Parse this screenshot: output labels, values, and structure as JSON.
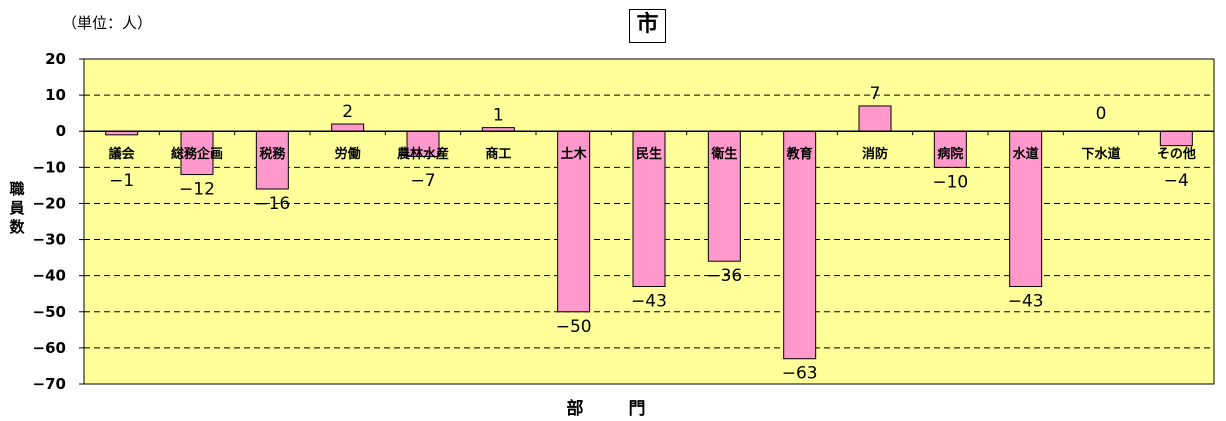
{
  "chart_data": {
    "type": "bar",
    "title": "市",
    "unit_note": "（単位：人）",
    "xlabel": "部　門",
    "ylabel": [
      "職",
      "員",
      "数"
    ],
    "categories": [
      "議会",
      "総務企画",
      "税務",
      "労働",
      "農林水産",
      "商工",
      "土木",
      "民生",
      "衛生",
      "教育",
      "消防",
      "病院",
      "水道",
      "下水道",
      "その他"
    ],
    "values": [
      -1,
      -12,
      -16,
      2,
      -7,
      1,
      -50,
      -43,
      -36,
      -63,
      7,
      -10,
      -43,
      0,
      -4
    ],
    "data_labels": [
      "−1",
      "−12",
      "−16",
      "2",
      "−7",
      "1",
      "−50",
      "−43",
      "−36",
      "−63",
      "7",
      "−10",
      "−43",
      "0",
      "−4"
    ],
    "yticks": [
      20,
      10,
      0,
      -10,
      -20,
      -30,
      -40,
      -50,
      -60,
      -70
    ],
    "ytick_labels": [
      "20",
      "10",
      "0",
      "−10",
      "−20",
      "−30",
      "−40",
      "−50",
      "−60",
      "−70"
    ],
    "ylim": [
      -70,
      20
    ],
    "grid": "horizontal-dashed",
    "colors": {
      "bar": "#ff99cc",
      "plot_bg": "#ffff99",
      "bar_edge": "#000000"
    }
  }
}
